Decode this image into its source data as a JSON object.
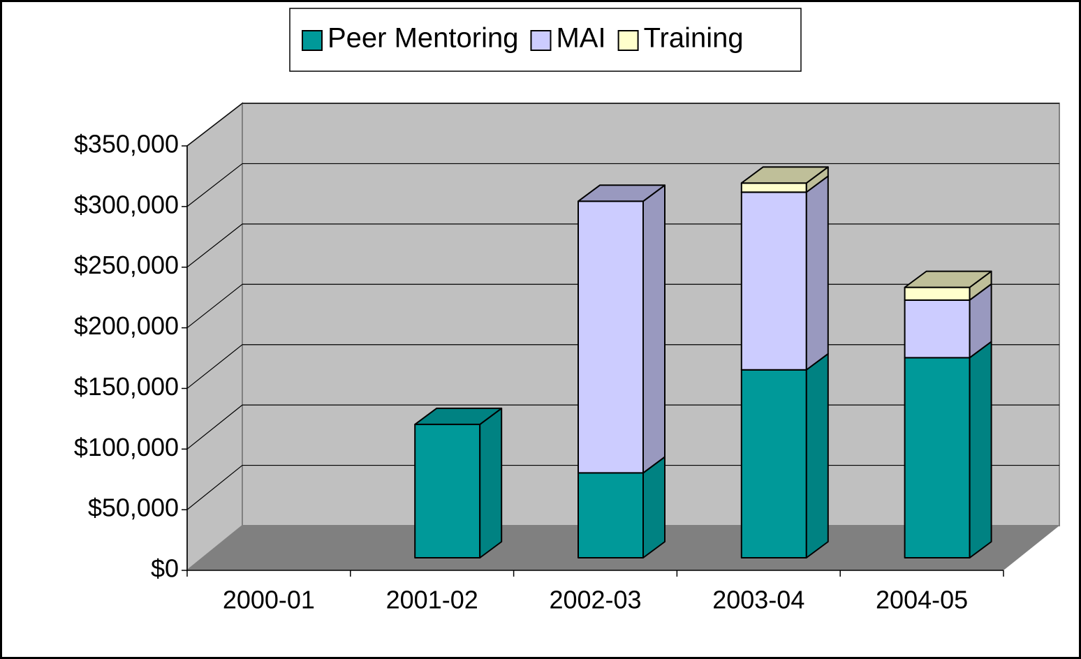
{
  "chart_data": {
    "type": "bar3d_stacked",
    "categories": [
      "2000-01",
      "2001-02",
      "2002-03",
      "2003-04",
      "2004-05"
    ],
    "series": [
      {
        "name": "Peer Mentoring",
        "color": "#009999",
        "values": [
          0,
          110000,
          70000,
          155000,
          165000
        ]
      },
      {
        "name": "MAI",
        "color": "#ccccff",
        "values": [
          0,
          0,
          224000,
          146500,
          47500
        ]
      },
      {
        "name": "Training",
        "color": "#ffffcc",
        "values": [
          0,
          0,
          0,
          7500,
          10500
        ]
      }
    ],
    "ylim": [
      0,
      350000
    ],
    "yticks": [
      {
        "value": 0,
        "label": "$0"
      },
      {
        "value": 50000,
        "label": "$50,000"
      },
      {
        "value": 100000,
        "label": "$100,000"
      },
      {
        "value": 150000,
        "label": "$150,000"
      },
      {
        "value": 200000,
        "label": "$200,000"
      },
      {
        "value": 250000,
        "label": "$250,000"
      },
      {
        "value": 300000,
        "label": "$300,000"
      },
      {
        "value": 350000,
        "label": "$350,000"
      }
    ],
    "grid": true,
    "legend": "top"
  }
}
